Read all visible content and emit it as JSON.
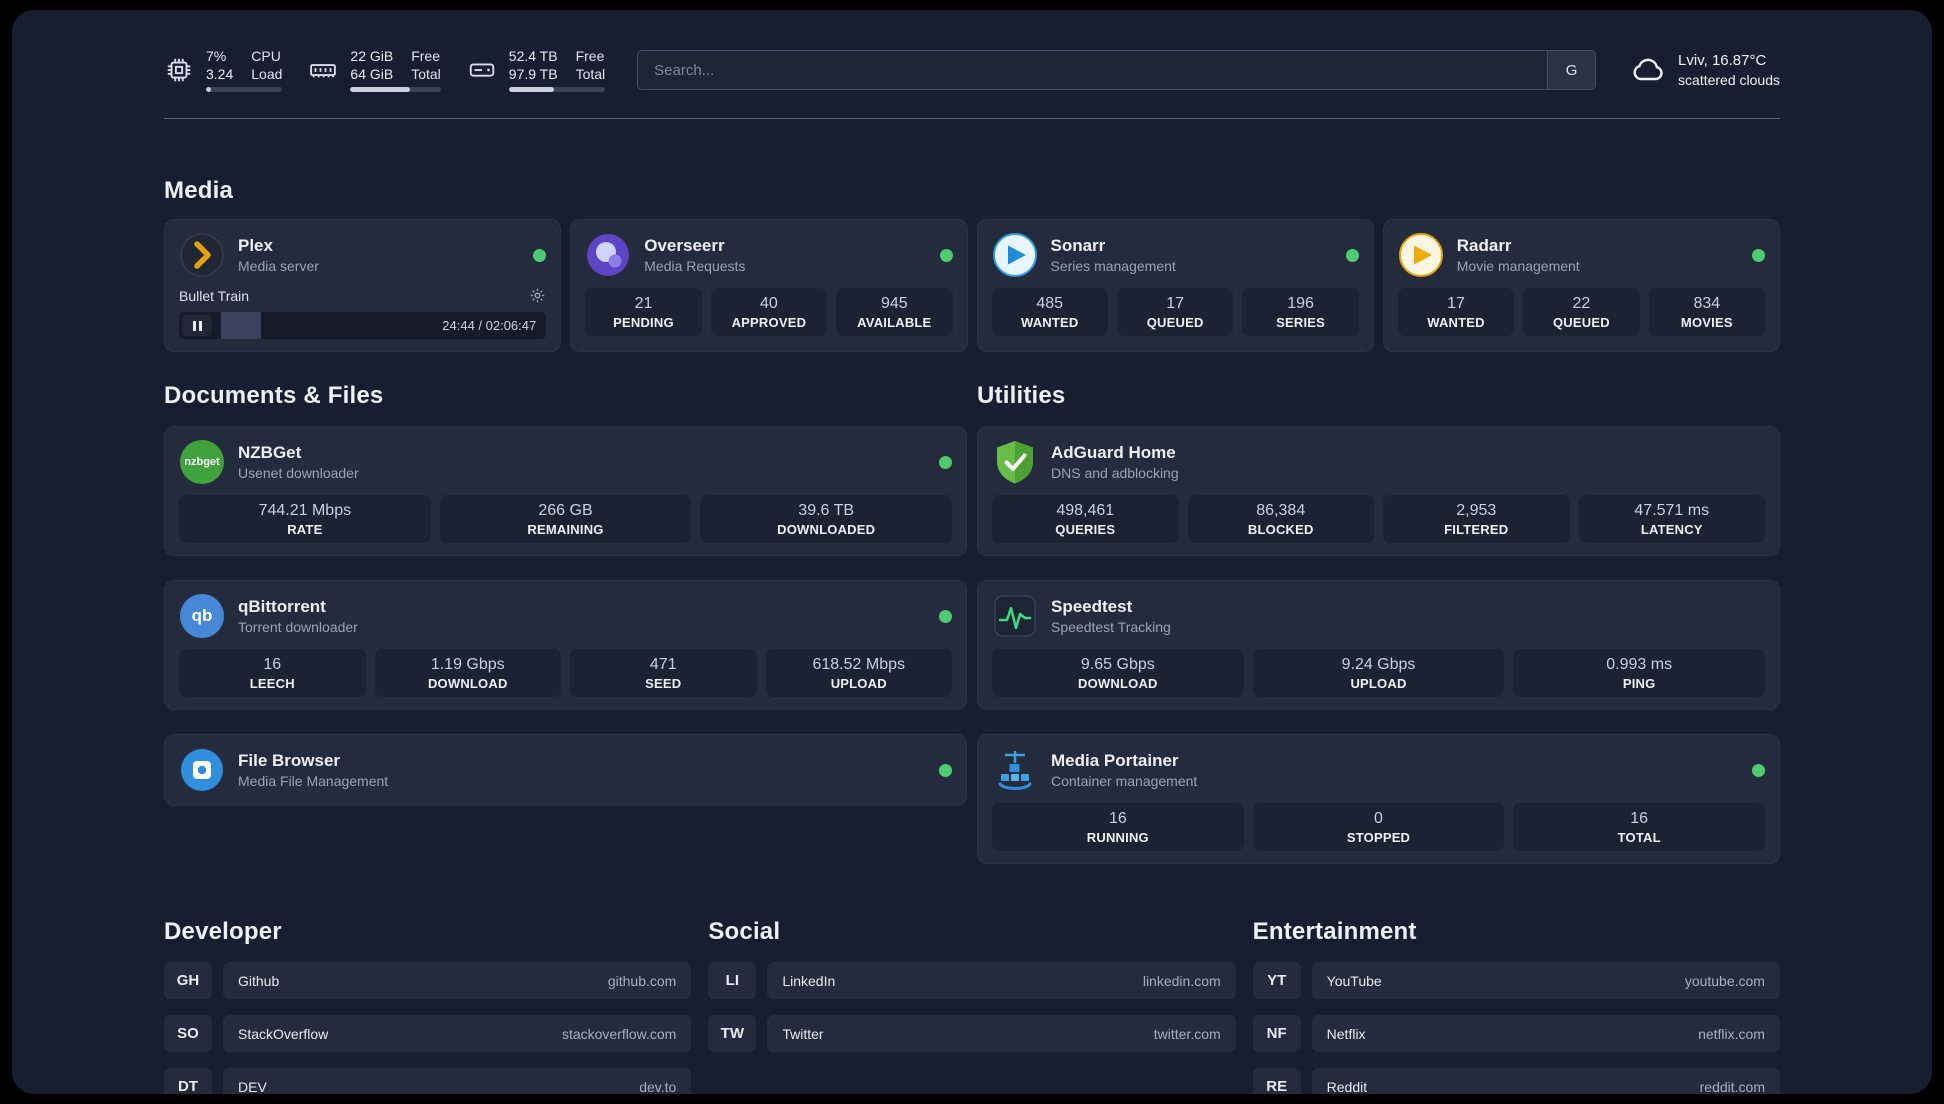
{
  "topbar": {
    "cpu": {
      "values": [
        "7%",
        "3.24"
      ],
      "labels": [
        "CPU",
        "Load"
      ],
      "progress_pct": 7
    },
    "ram": {
      "values": [
        "22 GiB",
        "64 GiB"
      ],
      "labels": [
        "Free",
        "Total"
      ],
      "progress_pct": 66
    },
    "disk": {
      "values": [
        "52.4 TB",
        "97.9 TB"
      ],
      "labels": [
        "Free",
        "Total"
      ],
      "progress_pct": 47
    },
    "search": {
      "placeholder": "Search...",
      "button_label": "G"
    },
    "weather": {
      "location": "Lviv, 16.87°C",
      "condition": "scattered clouds"
    }
  },
  "sections": {
    "media": {
      "title": "Media",
      "plex": {
        "name": "Plex",
        "subtitle": "Media server",
        "now_playing": "Bullet Train",
        "time": "24:44 / 02:06:47",
        "progress_pct": 19
      },
      "overseerr": {
        "name": "Overseerr",
        "subtitle": "Media Requests",
        "stats": [
          {
            "value": "21",
            "label": "PENDING"
          },
          {
            "value": "40",
            "label": "APPROVED"
          },
          {
            "value": "945",
            "label": "AVAILABLE"
          }
        ]
      },
      "sonarr": {
        "name": "Sonarr",
        "subtitle": "Series management",
        "stats": [
          {
            "value": "485",
            "label": "WANTED"
          },
          {
            "value": "17",
            "label": "QUEUED"
          },
          {
            "value": "196",
            "label": "SERIES"
          }
        ]
      },
      "radarr": {
        "name": "Radarr",
        "subtitle": "Movie management",
        "stats": [
          {
            "value": "17",
            "label": "WANTED"
          },
          {
            "value": "22",
            "label": "QUEUED"
          },
          {
            "value": "834",
            "label": "MOVIES"
          }
        ]
      }
    },
    "documents": {
      "title": "Documents & Files",
      "nzbget": {
        "name": "NZBGet",
        "subtitle": "Usenet downloader",
        "icon_text": "nzbget",
        "stats": [
          {
            "value": "744.21 Mbps",
            "label": "RATE"
          },
          {
            "value": "266 GB",
            "label": "REMAINING"
          },
          {
            "value": "39.6 TB",
            "label": "DOWNLOADED"
          }
        ]
      },
      "qbittorrent": {
        "name": "qBittorrent",
        "subtitle": "Torrent downloader",
        "icon_text": "qb",
        "stats": [
          {
            "value": "16",
            "label": "LEECH"
          },
          {
            "value": "1.19 Gbps",
            "label": "DOWNLOAD"
          },
          {
            "value": "471",
            "label": "SEED"
          },
          {
            "value": "618.52 Mbps",
            "label": "UPLOAD"
          }
        ]
      },
      "filebrowser": {
        "name": "File Browser",
        "subtitle": "Media File Management"
      }
    },
    "utilities": {
      "title": "Utilities",
      "adguard": {
        "name": "AdGuard Home",
        "subtitle": "DNS and adblocking",
        "stats": [
          {
            "value": "498,461",
            "label": "QUERIES"
          },
          {
            "value": "86,384",
            "label": "BLOCKED"
          },
          {
            "value": "2,953",
            "label": "FILTERED"
          },
          {
            "value": "47.571 ms",
            "label": "LATENCY"
          }
        ]
      },
      "speedtest": {
        "name": "Speedtest",
        "subtitle": "Speedtest Tracking",
        "stats": [
          {
            "value": "9.65 Gbps",
            "label": "DOWNLOAD"
          },
          {
            "value": "9.24 Gbps",
            "label": "UPLOAD"
          },
          {
            "value": "0.993 ms",
            "label": "PING"
          }
        ]
      },
      "portainer": {
        "name": "Media Portainer",
        "subtitle": "Container management",
        "stats": [
          {
            "value": "16",
            "label": "RUNNING"
          },
          {
            "value": "0",
            "label": "STOPPED"
          },
          {
            "value": "16",
            "label": "TOTAL"
          }
        ]
      }
    },
    "developer": {
      "title": "Developer",
      "links": [
        {
          "abbr": "GH",
          "name": "Github",
          "url": "github.com"
        },
        {
          "abbr": "SO",
          "name": "StackOverflow",
          "url": "stackoverflow.com"
        },
        {
          "abbr": "DT",
          "name": "DEV",
          "url": "dev.to"
        }
      ]
    },
    "social": {
      "title": "Social",
      "links": [
        {
          "abbr": "LI",
          "name": "LinkedIn",
          "url": "linkedin.com"
        },
        {
          "abbr": "TW",
          "name": "Twitter",
          "url": "twitter.com"
        }
      ]
    },
    "entertainment": {
      "title": "Entertainment",
      "links": [
        {
          "abbr": "YT",
          "name": "YouTube",
          "url": "youtube.com"
        },
        {
          "abbr": "NF",
          "name": "Netflix",
          "url": "netflix.com"
        },
        {
          "abbr": "RE",
          "name": "Reddit",
          "url": "reddit.com"
        }
      ]
    }
  },
  "colors": {
    "status_online": "#4ecb71",
    "plex_accent": "#e5a00d"
  }
}
